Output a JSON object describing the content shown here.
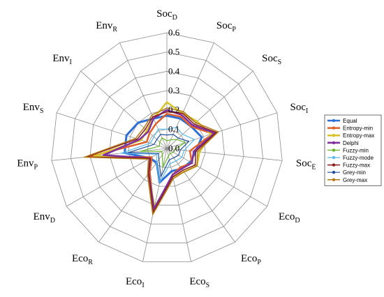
{
  "chart_data": {
    "type": "radar",
    "title": "",
    "rlim": [
      0,
      0.6
    ],
    "ticks": [
      "0.0",
      "0.1",
      "0.2",
      "0.3",
      "0.4",
      "0.5",
      "0.6"
    ],
    "grid": true,
    "legend_position": "right",
    "axes": [
      {
        "main": "Soc",
        "sub": "D"
      },
      {
        "main": "Soc",
        "sub": "P"
      },
      {
        "main": "Soc",
        "sub": "S"
      },
      {
        "main": "Soc",
        "sub": "I"
      },
      {
        "main": "Soc",
        "sub": "E"
      },
      {
        "main": "Eco",
        "sub": "D"
      },
      {
        "main": "Eco",
        "sub": "P"
      },
      {
        "main": "Eco",
        "sub": "S"
      },
      {
        "main": "Eco",
        "sub": "I"
      },
      {
        "main": "Eco",
        "sub": "R"
      },
      {
        "main": "Env",
        "sub": "D"
      },
      {
        "main": "Env",
        "sub": "P"
      },
      {
        "main": "Env",
        "sub": "S"
      },
      {
        "main": "Env",
        "sub": "I"
      },
      {
        "main": "Env",
        "sub": "R"
      }
    ],
    "series": [
      {
        "name": "Equal",
        "color": "#2e6fd6",
        "width": 3,
        "values": [
          0.17,
          0.17,
          0.17,
          0.19,
          0.15,
          0.14,
          0.13,
          0.12,
          0.18,
          0.09,
          0.1,
          0.22,
          0.22,
          0.2,
          0.17
        ]
      },
      {
        "name": "Entropy-min",
        "color": "#e0602a",
        "width": 2.5,
        "values": [
          0.18,
          0.18,
          0.17,
          0.25,
          0.12,
          0.15,
          0.12,
          0.14,
          0.33,
          0.15,
          0.09,
          0.4,
          0.11,
          0.12,
          0.14
        ]
      },
      {
        "name": "Entropy-max",
        "color": "#d8c22a",
        "width": 2.5,
        "values": [
          0.24,
          0.2,
          0.21,
          0.24,
          0.17,
          0.18,
          0.15,
          0.15,
          0.31,
          0.16,
          0.1,
          0.38,
          0.14,
          0.14,
          0.17
        ]
      },
      {
        "name": "Delphi",
        "color": "#7f2f9e",
        "width": 2.5,
        "values": [
          0.2,
          0.19,
          0.18,
          0.26,
          0.14,
          0.15,
          0.13,
          0.14,
          0.32,
          0.16,
          0.1,
          0.33,
          0.15,
          0.13,
          0.17
        ]
      },
      {
        "name": "Fuzzy-min",
        "color": "#67b52a",
        "width": 1.2,
        "values": [
          0.04,
          0.05,
          0.07,
          0.1,
          0.04,
          0.04,
          0.03,
          0.04,
          0.1,
          0.04,
          0.03,
          0.14,
          0.04,
          0.05,
          0.06
        ]
      },
      {
        "name": "Fuzzy-mode",
        "color": "#58b8e8",
        "width": 1.2,
        "values": [
          0.1,
          0.12,
          0.11,
          0.15,
          0.09,
          0.09,
          0.08,
          0.08,
          0.18,
          0.09,
          0.06,
          0.24,
          0.09,
          0.09,
          0.11
        ]
      },
      {
        "name": "Fuzzy-max",
        "color": "#8b1a1a",
        "width": 1.5,
        "values": [
          0.19,
          0.2,
          0.19,
          0.27,
          0.15,
          0.17,
          0.14,
          0.15,
          0.34,
          0.16,
          0.1,
          0.42,
          0.16,
          0.15,
          0.18
        ]
      },
      {
        "name": "Grey-min",
        "color": "#1f4e99",
        "width": 1.2,
        "values": [
          0.07,
          0.08,
          0.08,
          0.12,
          0.07,
          0.07,
          0.06,
          0.06,
          0.15,
          0.07,
          0.05,
          0.2,
          0.07,
          0.07,
          0.08
        ]
      },
      {
        "name": "Grey-max",
        "color": "#b07a1a",
        "width": 1.5,
        "values": [
          0.21,
          0.21,
          0.2,
          0.28,
          0.16,
          0.18,
          0.15,
          0.16,
          0.35,
          0.17,
          0.11,
          0.43,
          0.17,
          0.16,
          0.19
        ]
      }
    ]
  }
}
